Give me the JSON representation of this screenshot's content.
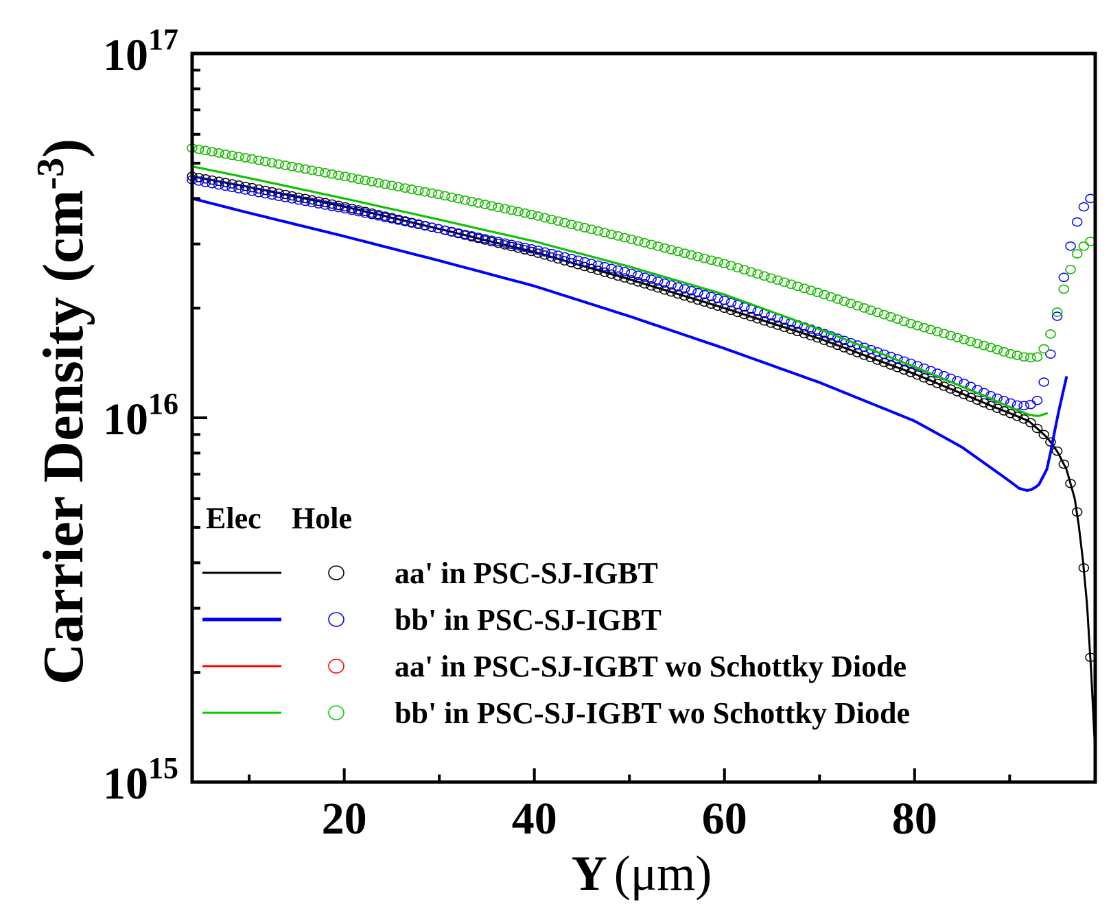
{
  "chart_data": {
    "type": "line",
    "title": "",
    "xlabel": "Y (μm)",
    "xlabel_parts": {
      "var": "Y",
      "unit": "(μm)"
    },
    "ylabel": "Carrier Density (cm-3)",
    "ylabel_parts": {
      "main": "Carrier Density (cm",
      "exp": "-3",
      "close": ")"
    },
    "yscale": "log",
    "xlim": [
      4,
      99
    ],
    "ylim": [
      1000000000000000.0,
      1e+17
    ],
    "grid": false,
    "x_ticks": [
      "20",
      "40",
      "60",
      "80"
    ],
    "y_ticks": [
      {
        "base": "10",
        "exp": "15"
      },
      {
        "base": "10",
        "exp": "16"
      },
      {
        "base": "10",
        "exp": "17"
      }
    ],
    "legend": {
      "position": "bottom-left",
      "header_elec": "Elec",
      "header_hole": "Hole",
      "entries": [
        {
          "label": "aa' in PSC-SJ-IGBT",
          "color": "#000000"
        },
        {
          "label": "bb' in PSC-SJ-IGBT",
          "color": "#0000ff"
        },
        {
          "label": "aa' in PSC-SJ-IGBT wo Schottky Diode",
          "color": "#ff0000"
        },
        {
          "label": "bb' in PSC-SJ-IGBT wo Schottky Diode",
          "color": "#00cc00"
        }
      ]
    },
    "series": [
      {
        "name": "aa' in PSC-SJ-IGBT (Elec)",
        "color": "#000000",
        "style": "line",
        "x": [
          4,
          10,
          20,
          30,
          40,
          50,
          60,
          70,
          80,
          88,
          90,
          92,
          93,
          94,
          95,
          96,
          97,
          98,
          98.5,
          99
        ],
        "y": [
          4.6e+16,
          4.3e+16,
          3.8e+16,
          3.3e+16,
          2.85e+16,
          2.4e+16,
          2e+16,
          1.65e+16,
          1.32e+16,
          1.08e+16,
          1.03e+16,
          9800000000000000.0,
          9300000000000000.0,
          8800000000000000.0,
          8100000000000000.0,
          7200000000000000.0,
          5800000000000000.0,
          3500000000000000.0,
          2200000000000000.0,
          1200000000000000.0
        ]
      },
      {
        "name": "aa' in PSC-SJ-IGBT (Hole)",
        "color": "#000000",
        "style": "markers",
        "x": [
          4,
          10,
          20,
          30,
          40,
          50,
          60,
          70,
          80,
          88,
          90,
          92,
          93,
          94,
          95,
          96,
          97,
          98,
          98.5,
          99
        ],
        "y": [
          4.6e+16,
          4.3e+16,
          3.8e+16,
          3.3e+16,
          2.85e+16,
          2.4e+16,
          2e+16,
          1.65e+16,
          1.32e+16,
          1.08e+16,
          1.03e+16,
          9800000000000000.0,
          9300000000000000.0,
          8800000000000000.0,
          8100000000000000.0,
          7200000000000000.0,
          5800000000000000.0,
          3500000000000000.0,
          2200000000000000.0,
          1200000000000000.0
        ]
      },
      {
        "name": "bb' in PSC-SJ-IGBT (Elec)",
        "color": "#0000ff",
        "style": "line",
        "x": [
          4,
          10,
          20,
          30,
          40,
          50,
          60,
          70,
          80,
          85,
          88,
          90,
          91,
          92,
          93,
          94,
          95,
          96
        ],
        "y": [
          4e+16,
          3.65e+16,
          3.15e+16,
          2.7e+16,
          2.3e+16,
          1.9e+16,
          1.55e+16,
          1.25e+16,
          9800000000000000.0,
          8300000000000000.0,
          7300000000000000.0,
          6700000000000000.0,
          6400000000000000.0,
          6300000000000000.0,
          6500000000000000.0,
          7300000000000000.0,
          1e+16,
          1.3e+16
        ]
      },
      {
        "name": "bb' in PSC-SJ-IGBT (Hole)",
        "color": "#0000ff",
        "style": "markers",
        "x": [
          4,
          10,
          20,
          30,
          40,
          50,
          60,
          70,
          80,
          85,
          88,
          90,
          91,
          92,
          93,
          94,
          95,
          96,
          97,
          98,
          99
        ],
        "y": [
          4.5e+16,
          4.2e+16,
          3.75e+16,
          3.3e+16,
          2.9e+16,
          2.5e+16,
          2.1e+16,
          1.72e+16,
          1.4e+16,
          1.25e+16,
          1.15e+16,
          1.1e+16,
          1.08e+16,
          1.08e+16,
          1.12e+16,
          1.35e+16,
          1.9e+16,
          2.7e+16,
          3.4e+16,
          3.9e+16,
          4.1e+16
        ]
      },
      {
        "name": "aa' in PSC-SJ-IGBT wo Schottky Diode (Elec)",
        "color": "#ff0000",
        "style": "line",
        "x": [
          4,
          10,
          20,
          30,
          40,
          50,
          60,
          70,
          80,
          88,
          90,
          92,
          93,
          94
        ],
        "y": [
          4.9e+16,
          4.55e+16,
          4e+16,
          3.5e+16,
          3.05e+16,
          2.6e+16,
          2.18e+16,
          1.75e+16,
          1.38e+16,
          1.13e+16,
          1.07e+16,
          1.02e+16,
          1.01e+16,
          1.03e+16
        ]
      },
      {
        "name": "aa' in PSC-SJ-IGBT wo Schottky Diode (Hole)",
        "color": "#ff0000",
        "style": "markers",
        "x": [
          4,
          10,
          20,
          30,
          40,
          50,
          60,
          70,
          80,
          88,
          90,
          92,
          93,
          94,
          95,
          96,
          97,
          98,
          99
        ],
        "y": [
          5.5e+16,
          5.15e+16,
          4.6e+16,
          4.1e+16,
          3.6e+16,
          3.1e+16,
          2.65e+16,
          2.2e+16,
          1.8e+16,
          1.56e+16,
          1.5e+16,
          1.46e+16,
          1.47e+16,
          1.6e+16,
          1.95e+16,
          2.4e+16,
          2.8e+16,
          3e+16,
          3.1e+16
        ]
      },
      {
        "name": "bb' in PSC-SJ-IGBT wo Schottky Diode (Elec)",
        "color": "#00cc00",
        "style": "line",
        "x": [
          4,
          10,
          20,
          30,
          40,
          50,
          60,
          70,
          80,
          88,
          90,
          92,
          93,
          94
        ],
        "y": [
          4.9e+16,
          4.55e+16,
          4e+16,
          3.5e+16,
          3.05e+16,
          2.6e+16,
          2.18e+16,
          1.75e+16,
          1.38e+16,
          1.13e+16,
          1.07e+16,
          1.02e+16,
          1.01e+16,
          1.03e+16
        ]
      },
      {
        "name": "bb' in PSC-SJ-IGBT wo Schottky Diode (Hole)",
        "color": "#00cc00",
        "style": "markers",
        "x": [
          4,
          10,
          20,
          30,
          40,
          50,
          60,
          70,
          80,
          88,
          90,
          92,
          93,
          94,
          95,
          96,
          97,
          98,
          99
        ],
        "y": [
          5.5e+16,
          5.15e+16,
          4.6e+16,
          4.1e+16,
          3.6e+16,
          3.1e+16,
          2.65e+16,
          2.2e+16,
          1.8e+16,
          1.56e+16,
          1.5e+16,
          1.46e+16,
          1.47e+16,
          1.6e+16,
          1.95e+16,
          2.4e+16,
          2.8e+16,
          3e+16,
          3.1e+16
        ]
      }
    ]
  }
}
